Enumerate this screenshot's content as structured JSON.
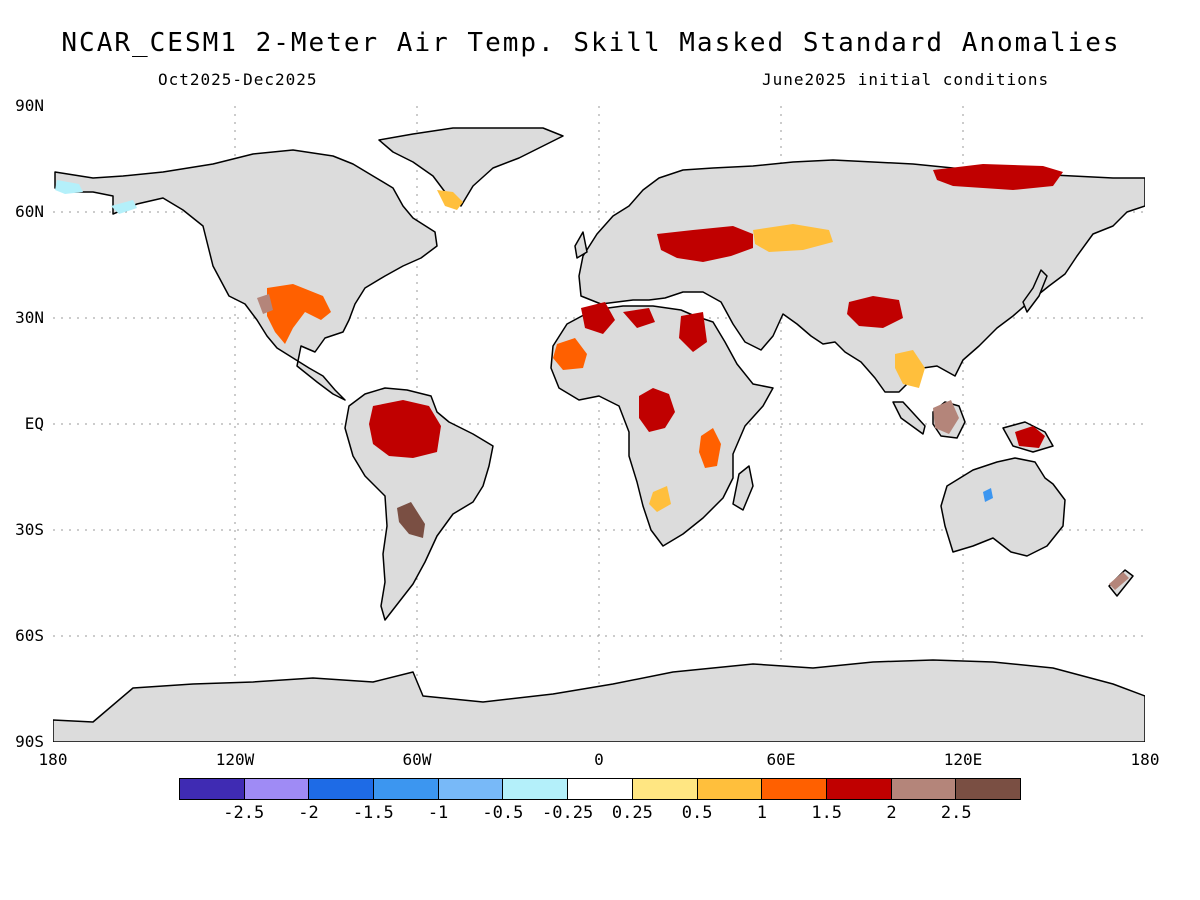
{
  "title": "NCAR_CESM1 2-Meter Air Temp. Skill Masked Standard Anomalies",
  "subtitle_left": "Oct2025-Dec2025",
  "subtitle_right": "June2025 initial conditions",
  "lat_labels": [
    "90N",
    "60N",
    "30N",
    "EQ",
    "30S",
    "60S",
    "90S"
  ],
  "lon_labels": [
    "180",
    "120W",
    "60W",
    "0",
    "60E",
    "120E",
    "180"
  ],
  "colorbar": {
    "colors": [
      "#3f2bb3",
      "#9f8bf5",
      "#1e6be6",
      "#3c96f0",
      "#78b9f8",
      "#b4f0fa",
      "#ffffff",
      "#ffe682",
      "#ffbf3c",
      "#ff6000",
      "#c00000",
      "#b4857a",
      "#7a4f43"
    ],
    "labels": [
      "-2.5",
      "-2",
      "-1.5",
      "-1",
      "-0.5",
      "-0.25",
      "0.25",
      "0.5",
      "1",
      "1.5",
      "2",
      "2.5"
    ]
  },
  "map": {
    "land_color": "#dcdcdc",
    "anomaly_regions": [
      {
        "region": "Alaska",
        "level": "-0.5",
        "color": "#b4f0fa"
      },
      {
        "region": "Greenland south",
        "level": "1",
        "color": "#ffbf3c"
      },
      {
        "region": "Mexico / SW United States",
        "level": "1.5",
        "color": "#ff6000"
      },
      {
        "region": "Northwest Mexico",
        "level": "2.5",
        "color": "#b4857a"
      },
      {
        "region": "Amazon basin",
        "level": "2",
        "color": "#c00000"
      },
      {
        "region": "Northern Argentina",
        "level": "2.5",
        "color": "#7a4f43"
      },
      {
        "region": "Eastern Europe / Black Sea",
        "level": "2",
        "color": "#c00000"
      },
      {
        "region": "Caspian region",
        "level": "1",
        "color": "#ffbf3c"
      },
      {
        "region": "West Africa",
        "level": "1.5",
        "color": "#ff6000"
      },
      {
        "region": "North Africa",
        "level": "2",
        "color": "#c00000"
      },
      {
        "region": "Central Africa",
        "level": "2",
        "color": "#c00000"
      },
      {
        "region": "East Africa",
        "level": "1.5",
        "color": "#ff6000"
      },
      {
        "region": "Southern Africa",
        "level": "1",
        "color": "#ffbf3c"
      },
      {
        "region": "Northern Siberia",
        "level": "2",
        "color": "#c00000"
      },
      {
        "region": "Tibetan Plateau",
        "level": "2",
        "color": "#c00000"
      },
      {
        "region": "Indochina",
        "level": "1",
        "color": "#ffbf3c"
      },
      {
        "region": "Borneo",
        "level": "2.5",
        "color": "#b4857a"
      },
      {
        "region": "New Guinea",
        "level": "2",
        "color": "#c00000"
      },
      {
        "region": "Northern Australia",
        "level": "-1",
        "color": "#3c96f0"
      },
      {
        "region": "New Zealand",
        "level": "2.5",
        "color": "#b4857a"
      }
    ]
  }
}
